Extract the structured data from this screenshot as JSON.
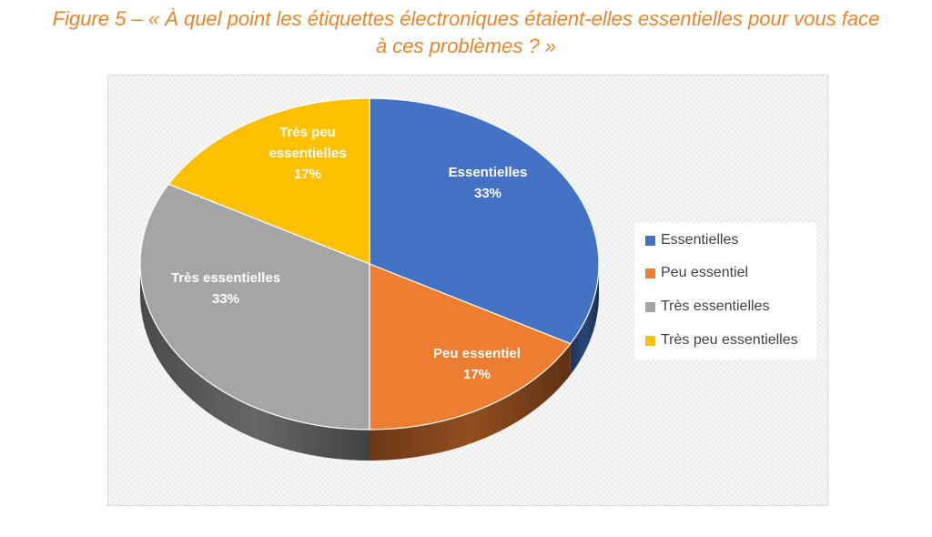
{
  "caption": {
    "line1": "Figure 5 – « À quel point les étiquettes électroniques étaient-elles essentielles pour vous face",
    "line2": "à ces problèmes ? »"
  },
  "chart_data": {
    "type": "pie",
    "categories": [
      "Essentielles",
      "Peu essentiel",
      "Très essentielles",
      "Très peu essentielles"
    ],
    "values": [
      33,
      17,
      33,
      17
    ],
    "data_labels": [
      "33%",
      "17%",
      "33%",
      "17%"
    ],
    "colors": [
      "#4472C4",
      "#ED7D31",
      "#A5A5A5",
      "#FFC000"
    ],
    "legend_position": "right",
    "style": "3d"
  },
  "slice_labels": [
    {
      "lines": [
        "Essentielles"
      ],
      "pct": "33%"
    },
    {
      "lines": [
        "Peu essentiel"
      ],
      "pct": "17%"
    },
    {
      "lines": [
        "Très essentielles"
      ],
      "pct": "33%"
    },
    {
      "lines": [
        "Très peu",
        "essentielles"
      ],
      "pct": "17%"
    }
  ],
  "legend": [
    {
      "label": "Essentielles",
      "color": "#4472C4"
    },
    {
      "label": "Peu essentiel",
      "color": "#ED7D31"
    },
    {
      "label": "Très essentielles",
      "color": "#A5A5A5"
    },
    {
      "label": "Très peu essentielles",
      "color": "#FFC000"
    }
  ]
}
